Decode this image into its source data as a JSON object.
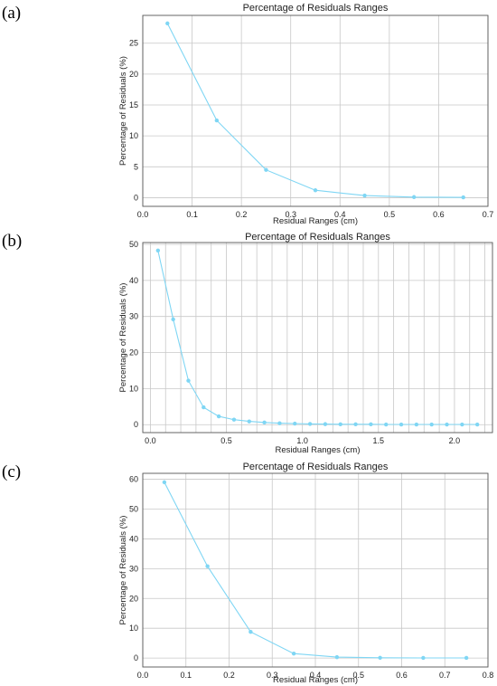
{
  "chart_data": [
    {
      "panel_label": "(a)",
      "type": "line",
      "title": "Percentage of Residuals Ranges",
      "xlabel": "Residual Ranges (cm)",
      "ylabel": "Percentage of Residuals (%)",
      "xlim": [
        0.0,
        0.7
      ],
      "ylim": [
        -1.4,
        29.5
      ],
      "xticks": [
        0.0,
        0.1,
        0.2,
        0.3,
        0.4,
        0.5,
        0.6,
        0.7
      ],
      "xtick_labels": [
        "0.0",
        "0.1",
        "0.2",
        "0.3",
        "0.4",
        "0.5",
        "0.6",
        "0.7"
      ],
      "yticks": [
        0,
        5,
        10,
        15,
        20,
        25
      ],
      "ytick_labels": [
        "0",
        "5",
        "10",
        "15",
        "20",
        "25"
      ],
      "grid": true,
      "color": "#7fd6f4",
      "series": [
        {
          "x": [
            0.05,
            0.15,
            0.25,
            0.35,
            0.45,
            0.55,
            0.65
          ],
          "y": [
            28.2,
            12.5,
            4.5,
            1.2,
            0.35,
            0.1,
            0.05
          ]
        }
      ]
    },
    {
      "panel_label": "(b)",
      "type": "line",
      "title": "Percentage of Residuals Ranges",
      "xlabel": "Residual Ranges (cm)",
      "ylabel": "Percentage of Residuals (%)",
      "xlim": [
        -0.05,
        2.25
      ],
      "ylim": [
        -2.2,
        50.5
      ],
      "xticks": [
        0.0,
        0.5,
        1.0,
        1.5,
        2.0
      ],
      "xtick_labels": [
        "0.0",
        "0.5",
        "1.0",
        "1.5",
        "2.0"
      ],
      "xgrid": [
        0.0,
        0.1,
        0.2,
        0.3,
        0.4,
        0.5,
        0.6,
        0.7,
        0.8,
        0.9,
        1.0,
        1.1,
        1.2,
        1.3,
        1.4,
        1.5,
        1.6,
        1.7,
        1.8,
        1.9,
        2.0,
        2.1,
        2.2
      ],
      "yticks": [
        0,
        10,
        20,
        30,
        40,
        50
      ],
      "ytick_labels": [
        "0",
        "10",
        "20",
        "30",
        "40",
        "50"
      ],
      "grid": true,
      "color": "#7fd6f4",
      "series": [
        {
          "x": [
            0.05,
            0.15,
            0.25,
            0.35,
            0.45,
            0.55,
            0.65,
            0.75,
            0.85,
            0.95,
            1.05,
            1.15,
            1.25,
            1.35,
            1.45,
            1.55,
            1.65,
            1.75,
            1.85,
            1.95,
            2.05,
            2.15
          ],
          "y": [
            48.3,
            29.2,
            12.2,
            4.8,
            2.3,
            1.4,
            0.9,
            0.6,
            0.4,
            0.3,
            0.2,
            0.15,
            0.1,
            0.1,
            0.1,
            0.05,
            0.05,
            0.05,
            0.05,
            0.05,
            0.05,
            0.05
          ]
        }
      ]
    },
    {
      "panel_label": "(c)",
      "type": "line",
      "title": "Percentage of Residuals Ranges",
      "xlabel": "Residual Ranges (cm)",
      "ylabel": "Percentage of Residuals (%)",
      "xlim": [
        0.0,
        0.8
      ],
      "ylim": [
        -3.0,
        62.0
      ],
      "xticks": [
        0.0,
        0.1,
        0.2,
        0.3,
        0.4,
        0.5,
        0.6,
        0.7,
        0.8
      ],
      "xtick_labels": [
        "0.0",
        "0.1",
        "0.2",
        "0.3",
        "0.4",
        "0.5",
        "0.6",
        "0.7",
        "0.8"
      ],
      "yticks": [
        0,
        10,
        20,
        30,
        40,
        50,
        60
      ],
      "ytick_labels": [
        "0",
        "10",
        "20",
        "30",
        "40",
        "50",
        "60"
      ],
      "grid": true,
      "color": "#7fd6f4",
      "series": [
        {
          "x": [
            0.05,
            0.15,
            0.25,
            0.35,
            0.45,
            0.55,
            0.65,
            0.75
          ],
          "y": [
            59.0,
            30.8,
            8.8,
            1.5,
            0.3,
            0.1,
            0.05,
            0.05
          ]
        }
      ]
    }
  ]
}
